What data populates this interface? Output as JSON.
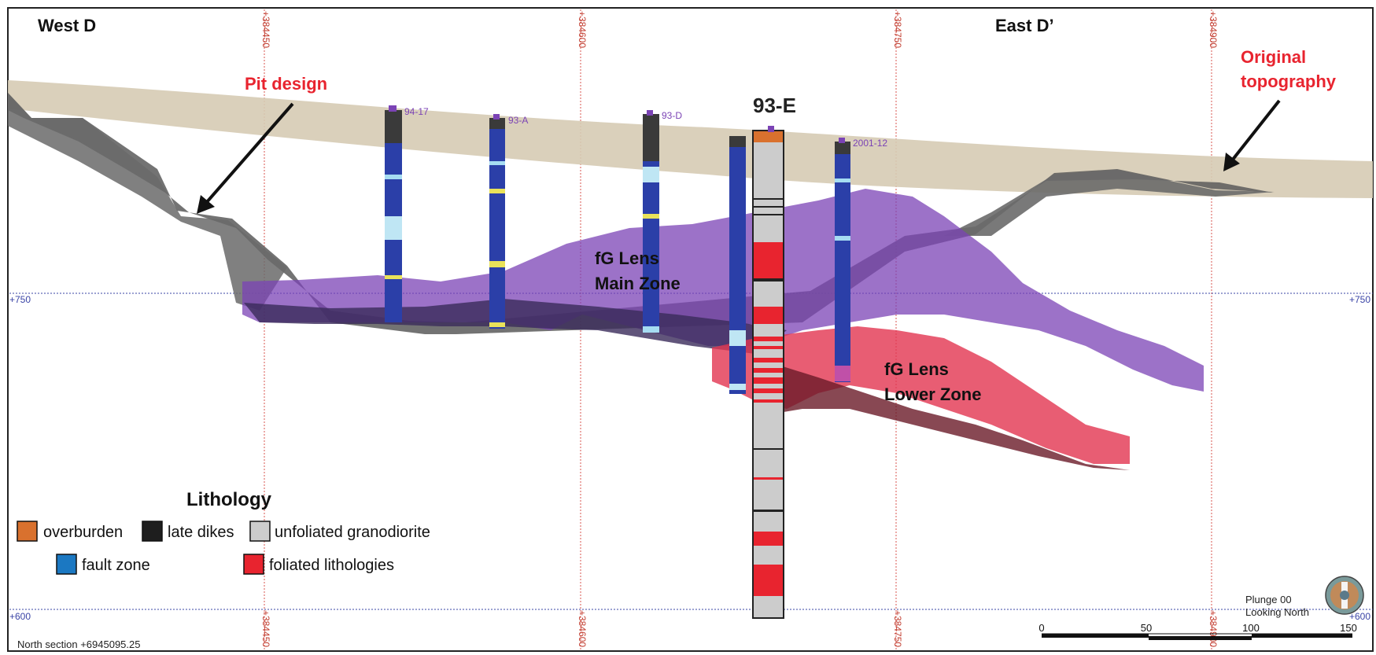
{
  "labels": {
    "west": "West D",
    "east": "East D’",
    "pit_design": "Pit design",
    "original_topo_1": "Original",
    "original_topo_2": "topography",
    "main_zone_1": "fG Lens",
    "main_zone_2": "Main Zone",
    "lower_zone_1": "fG Lens",
    "lower_zone_2": "Lower Zone",
    "focus_hole": "93-E",
    "north_section": "North section +6945095.25",
    "plunge": "Plunge 00",
    "looking": "Looking North"
  },
  "grid": {
    "eastings": [
      "+384450",
      "+384600",
      "+384750",
      "+384900"
    ],
    "elev_upper": "+750",
    "elev_lower": "+600"
  },
  "drillholes": [
    "94-17",
    "93-A",
    "93-D",
    "2001-12"
  ],
  "legend": {
    "title": "Lithology",
    "items": [
      {
        "label": "overburden",
        "color": "#d9712e"
      },
      {
        "label": "late dikes",
        "color": "#1e1e1e"
      },
      {
        "label": "unfoliated granodiorite",
        "color": "#cccccc"
      },
      {
        "label": "fault zone",
        "color": "#1b78c2"
      },
      {
        "label": "foliated lithologies",
        "color": "#e8242f"
      }
    ]
  },
  "scale": {
    "ticks": [
      "0",
      "50",
      "100",
      "150"
    ]
  },
  "colors": {
    "grid_red": "#d8554f",
    "grid_blue": "#3a44a6",
    "topo": "#d6cbb4",
    "pit": "#5a5a5a",
    "main_zone": "#7b43b5",
    "lower_zone": "#e23550",
    "hole_blue": "#2b3fa8",
    "annotation_red": "#e8242f"
  }
}
